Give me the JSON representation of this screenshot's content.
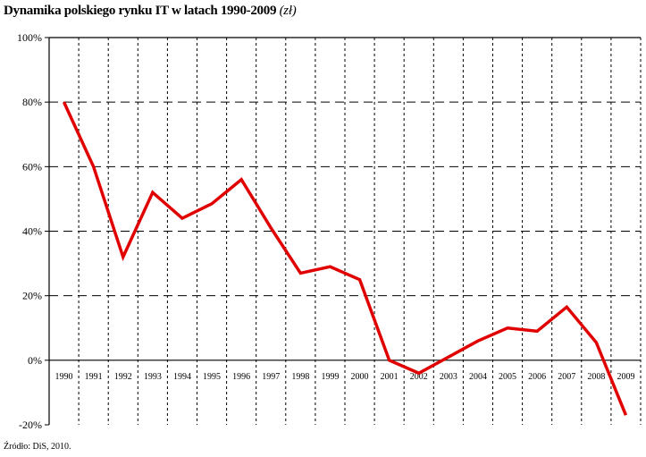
{
  "title": "Dynamika polskiego rynku IT w latach 1990-2009",
  "title_unit": "(zł)",
  "source": "Źródło: DiS, 2010.",
  "chart_data": {
    "type": "line",
    "title": "Dynamika polskiego rynku IT w latach 1990-2009 (zł)",
    "xlabel": "",
    "ylabel": "",
    "categories": [
      "1990",
      "1991",
      "1992",
      "1993",
      "1994",
      "1995",
      "1996",
      "1997",
      "1998",
      "1999",
      "2000",
      "2001",
      "2002",
      "2003",
      "2004",
      "2005",
      "2006",
      "2007",
      "2008",
      "2009"
    ],
    "values": [
      80,
      60,
      32,
      52,
      44,
      48.5,
      56,
      41,
      27,
      29,
      25,
      0,
      -4,
      1,
      6,
      10,
      9,
      16.5,
      5.5,
      -17
    ],
    "ylim": [
      -20,
      100
    ],
    "yticks": [
      "-20%",
      "0%",
      "20%",
      "40%",
      "60%",
      "80%",
      "100%"
    ],
    "ytick_values": [
      -20,
      0,
      20,
      40,
      60,
      80,
      100
    ],
    "grid": true,
    "line_color": "#e00000",
    "legend": "none"
  }
}
